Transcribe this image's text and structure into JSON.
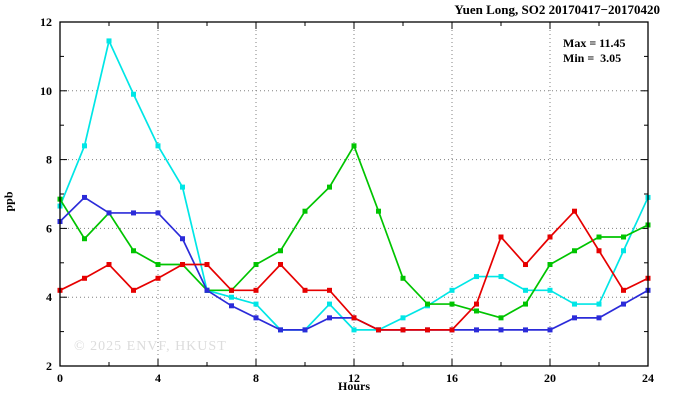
{
  "chart_data": {
    "type": "line",
    "title": "Yuen Long, SO2 20170417−20170420",
    "xlabel": "Hours",
    "ylabel": "ppb",
    "xlim": [
      0,
      24
    ],
    "ylim": [
      2,
      12
    ],
    "xticks": [
      0,
      4,
      8,
      12,
      16,
      20,
      24
    ],
    "yticks": [
      2,
      4,
      6,
      8,
      10,
      12
    ],
    "x_minor_step": 2,
    "y_minor_step": 1,
    "grid": "dotted gridlines at major ticks, mirrored inward ticks on all borders",
    "legend_position": "none",
    "annotations": {
      "max_label": "Max = 11.45",
      "min_label": "Min =  3.05"
    },
    "watermark": "© 2025 ENVF, HKUST",
    "x": [
      0,
      1,
      2,
      3,
      4,
      5,
      6,
      7,
      8,
      9,
      10,
      11,
      12,
      13,
      14,
      15,
      16,
      17,
      18,
      19,
      20,
      21,
      22,
      23,
      24
    ],
    "series": [
      {
        "name": "cyan",
        "color": "#00e6e6",
        "values": [
          6.65,
          8.4,
          11.45,
          9.9,
          8.4,
          7.2,
          4.2,
          4.0,
          3.8,
          3.05,
          3.05,
          3.8,
          3.05,
          3.05,
          3.4,
          3.75,
          4.2,
          4.6,
          4.6,
          4.2,
          4.2,
          3.8,
          3.8,
          5.35,
          6.9
        ]
      },
      {
        "name": "green",
        "color": "#00c400",
        "values": [
          6.85,
          5.7,
          6.45,
          5.35,
          4.95,
          4.95,
          4.2,
          4.2,
          4.95,
          5.35,
          6.5,
          7.2,
          8.4,
          6.5,
          4.55,
          3.8,
          3.8,
          3.6,
          3.4,
          3.8,
          4.95,
          5.35,
          5.75,
          5.75,
          6.1
        ]
      },
      {
        "name": "blue",
        "color": "#2b2bd9",
        "values": [
          6.2,
          6.9,
          6.45,
          6.45,
          6.45,
          5.7,
          4.2,
          3.75,
          3.4,
          3.05,
          3.05,
          3.4,
          3.4,
          3.05,
          3.05,
          3.05,
          3.05,
          3.05,
          3.05,
          3.05,
          3.05,
          3.4,
          3.4,
          3.8,
          4.2
        ]
      },
      {
        "name": "red",
        "color": "#e60000",
        "values": [
          4.2,
          4.55,
          4.95,
          4.2,
          4.55,
          4.95,
          4.95,
          4.2,
          4.2,
          4.95,
          4.2,
          4.2,
          3.4,
          3.05,
          3.05,
          3.05,
          3.05,
          3.8,
          5.75,
          4.95,
          5.75,
          6.5,
          5.35,
          4.2,
          4.55
        ]
      }
    ],
    "colors": {
      "axis": "#000000",
      "grid": "#808080",
      "watermark": "#dcdcdc",
      "background": "#ffffff"
    }
  }
}
